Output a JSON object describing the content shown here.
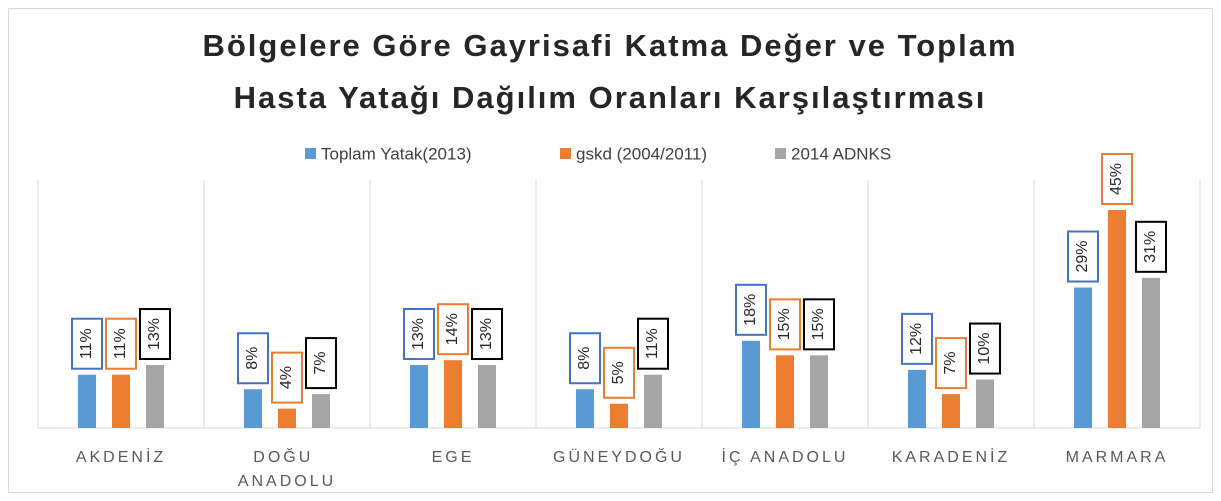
{
  "chart_data": {
    "type": "bar",
    "title": [
      "Bölgelere Göre Gayrisafi Katma Değer ve Toplam",
      "Hasta Yatağı Dağılım Oranları Karşılaştırması"
    ],
    "categories": [
      "AKDENİZ",
      "DOĞU ANADOLU",
      "EGE",
      "GÜNEYDOĞU",
      "İÇ ANADOLU",
      "KARADENİZ",
      "MARMARA"
    ],
    "series": [
      {
        "name": "Toplam Yatak(2013)",
        "color": "#5b9bd5",
        "label_color": "#4472c4",
        "values": [
          11,
          8,
          13,
          8,
          18,
          12,
          29
        ],
        "value_labels": [
          "11%",
          "8%",
          "13%",
          "8%",
          "18%",
          "12%",
          "29%"
        ]
      },
      {
        "name": "gskd (2004/2011)",
        "color": "#ed7d31",
        "label_color": "#ed7d31",
        "values": [
          11,
          4,
          14,
          5,
          15,
          7,
          45
        ],
        "value_labels": [
          "11%",
          "4%",
          "14%",
          "5%",
          "15%",
          "7%",
          "45%"
        ]
      },
      {
        "name": "2014 ADNKS",
        "color": "#a5a5a5",
        "label_color": "#000000",
        "values": [
          13,
          7,
          13,
          11,
          15,
          10,
          31
        ],
        "value_labels": [
          "13%",
          "7%",
          "13%",
          "11%",
          "15%",
          "10%",
          "31%"
        ]
      }
    ],
    "legend": "top"
  }
}
